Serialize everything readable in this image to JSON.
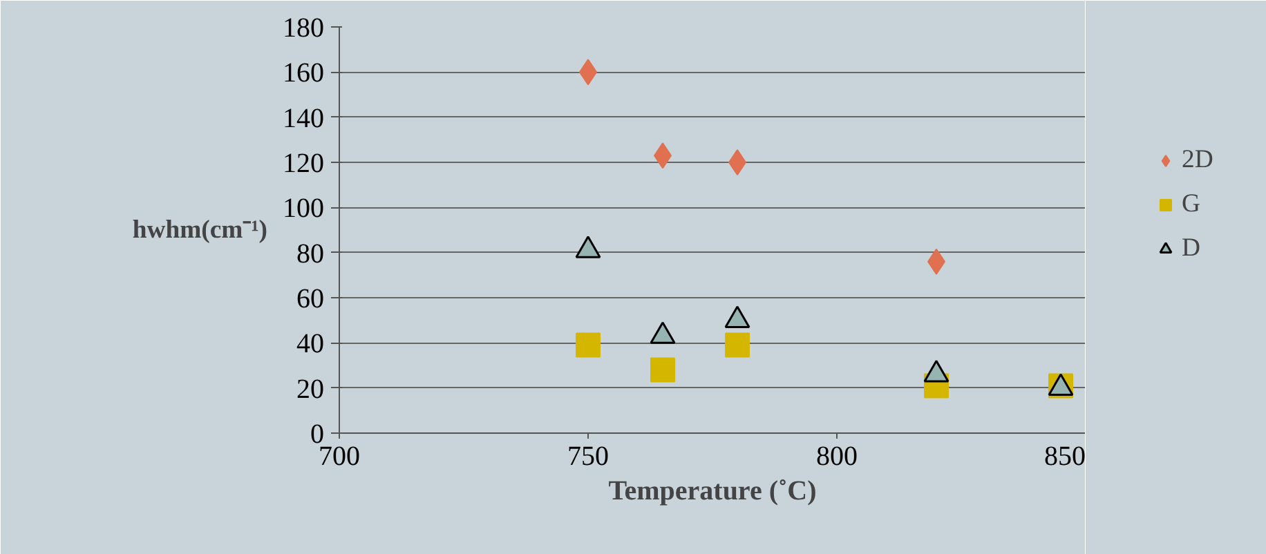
{
  "chart_data": {
    "type": "scatter",
    "xlabel": "Temperature (˚C)",
    "ylabel": "hwhm(cm⁻¹)",
    "xlim": [
      700,
      850
    ],
    "xticks": [
      700,
      750,
      800,
      850
    ],
    "ylim": [
      0,
      180
    ],
    "yticks": [
      0,
      20,
      40,
      60,
      80,
      100,
      120,
      140,
      160,
      180
    ],
    "grid": "y",
    "legend": "right",
    "series": [
      {
        "name": "2D",
        "color": "#e0704f",
        "marker": "diamond",
        "x": [
          750,
          765,
          780,
          820
        ],
        "values": [
          160,
          123,
          120,
          76
        ]
      },
      {
        "name": "G",
        "color": "#d4b600",
        "marker": "square",
        "x": [
          750,
          765,
          780,
          820,
          845
        ],
        "values": [
          39,
          28,
          39,
          21,
          21
        ]
      },
      {
        "name": "D",
        "color": "#96b4b2",
        "marker": "triangle",
        "x": [
          750,
          765,
          780,
          820,
          845
        ],
        "values": [
          81,
          43,
          50,
          26,
          20
        ]
      }
    ]
  }
}
